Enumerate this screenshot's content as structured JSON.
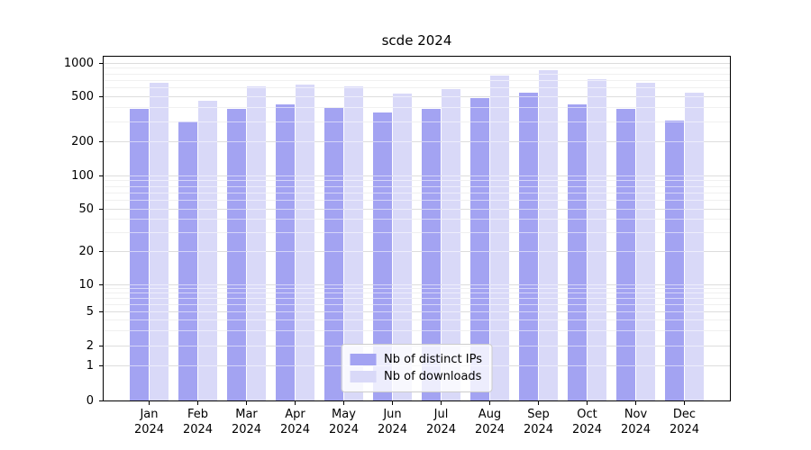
{
  "title": "scde 2024",
  "legend": {
    "items": [
      {
        "label": "Nb of distinct IPs",
        "color": "#a3a3f2"
      },
      {
        "label": "Nb of downloads",
        "color": "#d9d9f8"
      }
    ]
  },
  "axes": {
    "y_tick_labels": [
      "0",
      "1",
      "2",
      "5",
      "10",
      "20",
      "50",
      "100",
      "200",
      "500",
      "1000"
    ],
    "x_months": [
      "Jan",
      "Feb",
      "Mar",
      "Apr",
      "May",
      "Jun",
      "Jul",
      "Aug",
      "Sep",
      "Oct",
      "Nov",
      "Dec"
    ],
    "x_year": "2024"
  },
  "colors": {
    "distinct_ips_bar": "#a3a3f2",
    "downloads_bar": "#d9d9f8",
    "grid_major": "#b3b3b3",
    "grid_minor": "#dedede",
    "axis_spine": "#000000"
  },
  "chart_data": {
    "type": "bar",
    "title": "scde 2024",
    "categories": [
      "Jan 2024",
      "Feb 2024",
      "Mar 2024",
      "Apr 2024",
      "May 2024",
      "Jun 2024",
      "Jul 2024",
      "Aug 2024",
      "Sep 2024",
      "Oct 2024",
      "Nov 2024",
      "Dec 2024"
    ],
    "series": [
      {
        "name": "Nb of distinct IPs",
        "color": "#a3a3f2",
        "values": [
          390,
          300,
          390,
          430,
          400,
          360,
          390,
          485,
          540,
          425,
          390,
          310
        ]
      },
      {
        "name": "Nb of downloads",
        "color": "#d9d9f8",
        "values": [
          660,
          460,
          615,
          640,
          615,
          530,
          590,
          770,
          860,
          715,
          660,
          540
        ]
      }
    ],
    "xlabel": "",
    "ylabel": "",
    "yscale": "log-like (0,1,2,5,10,20,50,100,200,500,1000)",
    "yticks": [
      0,
      1,
      2,
      5,
      10,
      20,
      50,
      100,
      200,
      500,
      1000
    ],
    "minor_yticks": [
      3,
      4,
      6,
      7,
      8,
      9,
      30,
      40,
      60,
      70,
      80,
      90,
      300,
      400,
      600,
      700,
      800,
      900
    ],
    "ylim": [
      0,
      1150
    ],
    "grid": true,
    "legend_position": "lower center"
  }
}
